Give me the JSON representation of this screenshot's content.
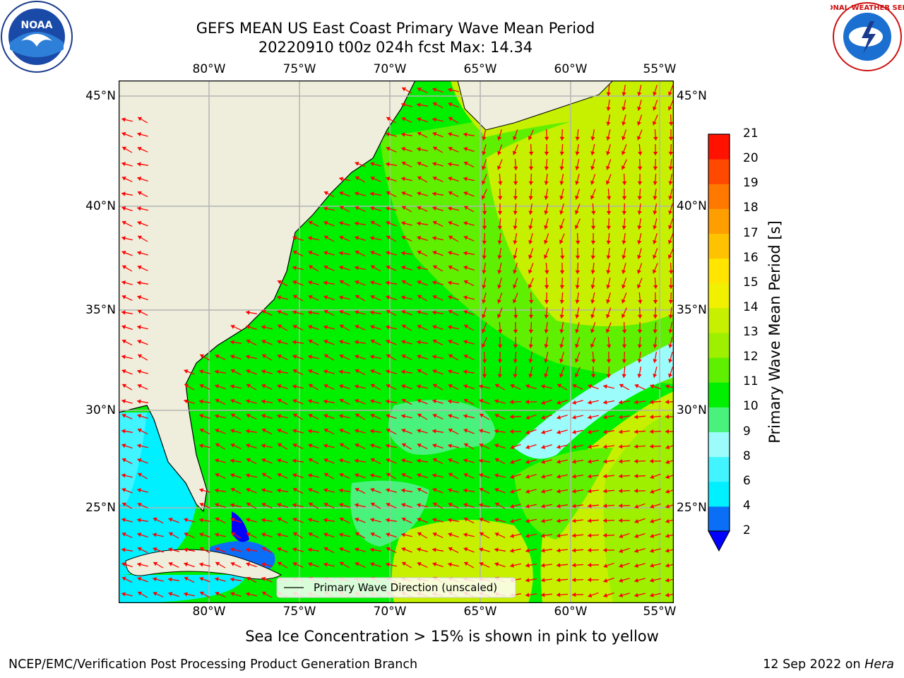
{
  "header": {
    "title_line1": "GEFS MEAN US East Coast Primary Wave Mean Period",
    "title_line2": "20220910 t00z 024h fcst   Max: 14.34"
  },
  "map": {
    "lon_labels": [
      "80°W",
      "75°W",
      "70°W",
      "65°W",
      "60°W",
      "55°W"
    ],
    "lat_labels": [
      "45°N",
      "40°N",
      "35°N",
      "30°N",
      "25°N"
    ],
    "legend": "Primary Wave Direction (unscaled)",
    "vector_color": "#ff0000",
    "land_color": "#efeedc"
  },
  "colorbar": {
    "label": "Primary Wave Mean Period [s]",
    "ticks": [
      "21",
      "20",
      "19",
      "18",
      "17",
      "16",
      "15",
      "14",
      "13",
      "12",
      "11",
      "10",
      "9",
      "8",
      "6",
      "4",
      "2"
    ],
    "colors": [
      "#0000ff",
      "#0a6ff6",
      "#00f0ff",
      "#41f4ff",
      "#9cfcfc",
      "#49f27d",
      "#00f000",
      "#5ef000",
      "#9ef000",
      "#c6f000",
      "#f0f000",
      "#ffe500",
      "#ffc200",
      "#ff9e00",
      "#ff7800",
      "#ff4800",
      "#ff1200",
      "#ff0000"
    ]
  },
  "footer": {
    "subtitle": "Sea Ice Concentration > 15% is shown in pink to yellow",
    "left": "NCEP/EMC/Verification Post Processing Product Generation Branch",
    "right_date": "12 Sep 2022 on ",
    "right_host": "Hera"
  },
  "logos": {
    "noaa_text": "NOAA",
    "nws_text": "NATIONAL WEATHER SERVICE"
  }
}
